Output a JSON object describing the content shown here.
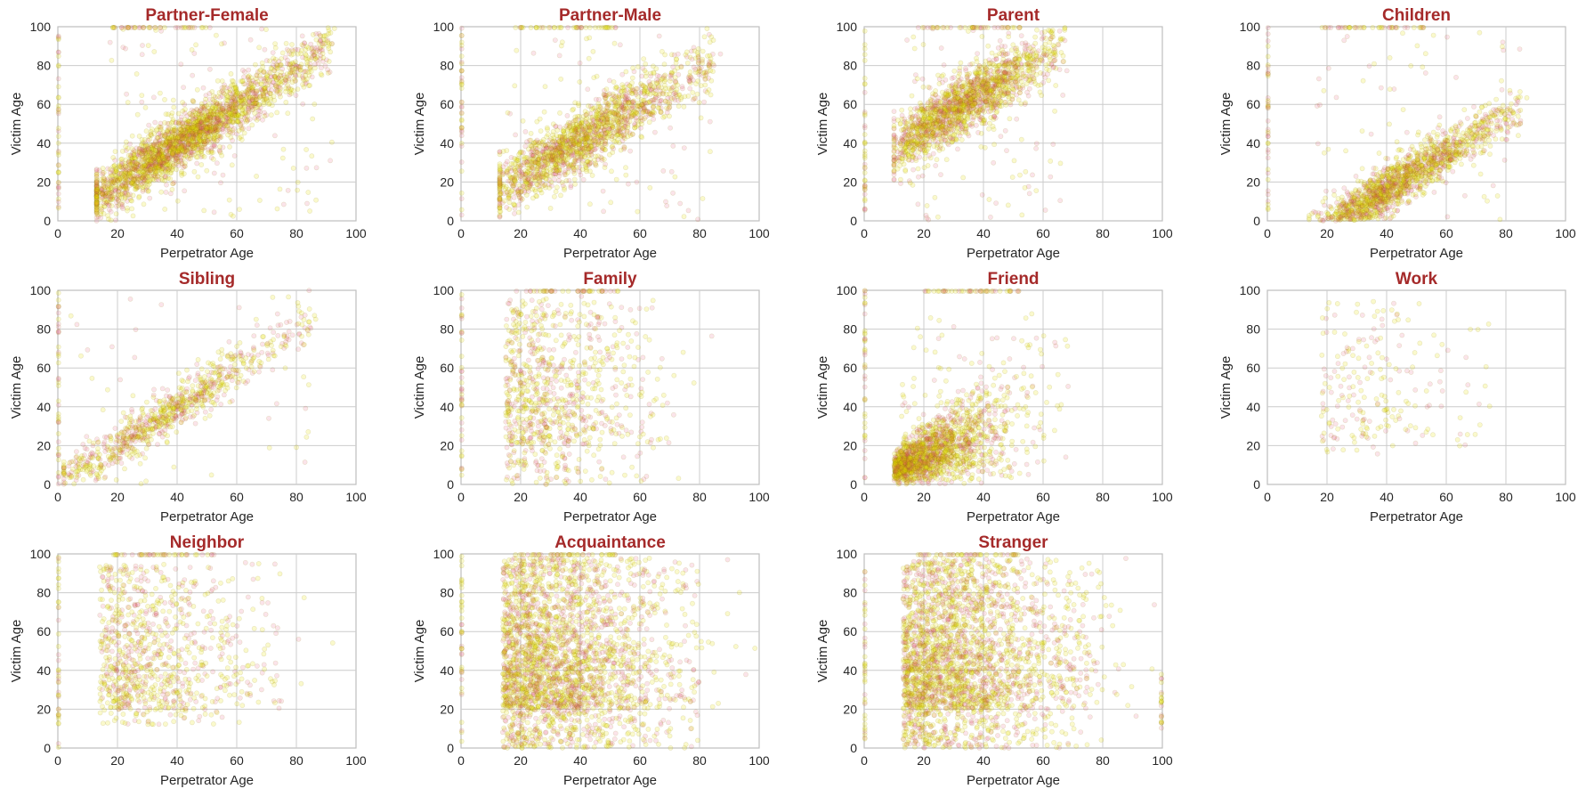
{
  "colors": {
    "title": "#a52a2a",
    "point_fill_red": "#e0436a",
    "point_fill_yellow": "#e8e000",
    "point_edge": "#8a7a00",
    "grid": "#cccccc",
    "frame": "#bfbfbf"
  },
  "chart_data": [
    {
      "type": "scatter",
      "title": "Partner-Female",
      "xlabel": "Perpetrator Age",
      "ylabel": "Victim Age",
      "xlim": [
        0,
        100
      ],
      "ylim": [
        0,
        100
      ],
      "xticks": [
        "0",
        "20",
        "40",
        "60",
        "80",
        "100"
      ],
      "yticks": [
        "0",
        "20",
        "40",
        "60",
        "80",
        "100"
      ],
      "grid": true,
      "pattern": {
        "kind": "band",
        "slope": 0.98,
        "intercept": 0,
        "spread": 7,
        "x_range": [
          15,
          92
        ],
        "density": "very-high",
        "top_edge_points": true,
        "left_edge_points": true
      }
    },
    {
      "type": "scatter",
      "title": "Partner-Male",
      "xlabel": "Perpetrator Age",
      "ylabel": "Victim Age",
      "xlim": [
        0,
        100
      ],
      "ylim": [
        0,
        100
      ],
      "xticks": [
        "0",
        "20",
        "40",
        "60",
        "80",
        "100"
      ],
      "yticks": [
        "0",
        "20",
        "40",
        "60",
        "80",
        "100"
      ],
      "grid": true,
      "pattern": {
        "kind": "band",
        "slope": 0.92,
        "intercept": 5,
        "spread": 8,
        "x_range": [
          15,
          85
        ],
        "density": "high",
        "top_edge_points": true,
        "left_edge_points": true
      }
    },
    {
      "type": "scatter",
      "title": "Parent",
      "xlabel": "Perpetrator Age",
      "ylabel": "Victim Age",
      "xlim": [
        0,
        100
      ],
      "ylim": [
        0,
        100
      ],
      "xticks": [
        "0",
        "20",
        "40",
        "60",
        "80",
        "100"
      ],
      "yticks": [
        "0",
        "20",
        "40",
        "60",
        "80",
        "100"
      ],
      "grid": true,
      "pattern": {
        "kind": "band",
        "slope": 0.95,
        "intercept": 28,
        "spread": 8,
        "x_range": [
          12,
          68
        ],
        "density": "high",
        "top_edge_points": true,
        "left_edge_points": true
      }
    },
    {
      "type": "scatter",
      "title": "Children",
      "xlabel": "Perpetrator Age",
      "ylabel": "Victim Age",
      "xlim": [
        0,
        100
      ],
      "ylim": [
        0,
        100
      ],
      "xticks": [
        "0",
        "20",
        "40",
        "60",
        "80",
        "100"
      ],
      "yticks": [
        "0",
        "20",
        "40",
        "60",
        "80",
        "100"
      ],
      "grid": true,
      "pattern": {
        "kind": "band",
        "slope": 0.95,
        "intercept": -22,
        "spread": 6,
        "x_range": [
          16,
          85
        ],
        "density": "high",
        "top_edge_points": true,
        "left_edge_points": true
      }
    },
    {
      "type": "scatter",
      "title": "Sibling",
      "xlabel": "Perpetrator Age",
      "ylabel": "Victim Age",
      "xlim": [
        0,
        100
      ],
      "ylim": [
        0,
        100
      ],
      "xticks": [
        "0",
        "20",
        "40",
        "60",
        "80",
        "100"
      ],
      "yticks": [
        "0",
        "20",
        "40",
        "60",
        "80",
        "100"
      ],
      "grid": true,
      "pattern": {
        "kind": "band",
        "slope": 1.0,
        "intercept": 0,
        "spread": 6,
        "x_range": [
          4,
          85
        ],
        "density": "medium",
        "top_edge_points": false,
        "left_edge_points": true
      }
    },
    {
      "type": "scatter",
      "title": "Family",
      "xlabel": "Perpetrator Age",
      "ylabel": "Victim Age",
      "xlim": [
        0,
        100
      ],
      "ylim": [
        0,
        100
      ],
      "xticks": [
        "0",
        "20",
        "40",
        "60",
        "80",
        "100"
      ],
      "yticks": [
        "0",
        "20",
        "40",
        "60",
        "80",
        "100"
      ],
      "grid": true,
      "pattern": {
        "kind": "cloud",
        "x_range": [
          15,
          70
        ],
        "y_range": [
          0,
          95
        ],
        "density": "medium",
        "top_edge_points": true,
        "left_edge_points": true
      }
    },
    {
      "type": "scatter",
      "title": "Friend",
      "xlabel": "Perpetrator Age",
      "ylabel": "Victim Age",
      "xlim": [
        0,
        100
      ],
      "ylim": [
        0,
        100
      ],
      "xticks": [
        "0",
        "20",
        "40",
        "60",
        "80",
        "100"
      ],
      "yticks": [
        "0",
        "20",
        "40",
        "60",
        "80",
        "100"
      ],
      "grid": true,
      "pattern": {
        "kind": "fan",
        "x_range": [
          10,
          70
        ],
        "y_range": [
          8,
          75
        ],
        "density": "high",
        "top_edge_points": true,
        "left_edge_points": true
      }
    },
    {
      "type": "scatter",
      "title": "Work",
      "xlabel": "Perpetrator Age",
      "ylabel": "Victim Age",
      "xlim": [
        0,
        100
      ],
      "ylim": [
        0,
        100
      ],
      "xticks": [
        "0",
        "20",
        "40",
        "60",
        "80",
        "100"
      ],
      "yticks": [
        "0",
        "20",
        "40",
        "60",
        "80",
        "100"
      ],
      "grid": true,
      "pattern": {
        "kind": "cloud",
        "x_range": [
          18,
          75
        ],
        "y_range": [
          15,
          95
        ],
        "density": "low",
        "top_edge_points": false,
        "left_edge_points": false
      }
    },
    {
      "type": "scatter",
      "title": "Neighbor",
      "xlabel": "Perpetrator Age",
      "ylabel": "Victim Age",
      "xlim": [
        0,
        100
      ],
      "ylim": [
        0,
        100
      ],
      "xticks": [
        "0",
        "20",
        "40",
        "60",
        "80",
        "100"
      ],
      "yticks": [
        "0",
        "20",
        "40",
        "60",
        "80",
        "100"
      ],
      "grid": true,
      "pattern": {
        "kind": "cloud",
        "x_range": [
          14,
          75
        ],
        "y_range": [
          12,
          95
        ],
        "density": "medium",
        "top_edge_points": true,
        "left_edge_points": true
      }
    },
    {
      "type": "scatter",
      "title": "Acquaintance",
      "xlabel": "Perpetrator Age",
      "ylabel": "Victim Age",
      "xlim": [
        0,
        100
      ],
      "ylim": [
        0,
        100
      ],
      "xticks": [
        "0",
        "20",
        "40",
        "60",
        "80",
        "100"
      ],
      "yticks": [
        "0",
        "20",
        "40",
        "60",
        "80",
        "100"
      ],
      "grid": true,
      "pattern": {
        "kind": "cloud",
        "x_range": [
          14,
          80
        ],
        "y_range": [
          0,
          98
        ],
        "density": "very-high",
        "top_edge_points": true,
        "left_edge_points": true
      }
    },
    {
      "type": "scatter",
      "title": "Stranger",
      "xlabel": "Perpetrator Age",
      "ylabel": "Victim Age",
      "xlim": [
        0,
        100
      ],
      "ylim": [
        0,
        100
      ],
      "xticks": [
        "0",
        "20",
        "40",
        "60",
        "80",
        "100"
      ],
      "yticks": [
        "0",
        "20",
        "40",
        "60",
        "80",
        "100"
      ],
      "grid": true,
      "pattern": {
        "kind": "cloud",
        "x_range": [
          13,
          80
        ],
        "y_range": [
          0,
          98
        ],
        "density": "very-high",
        "top_edge_points": true,
        "left_edge_points": true,
        "right_edge_points": true
      }
    }
  ]
}
